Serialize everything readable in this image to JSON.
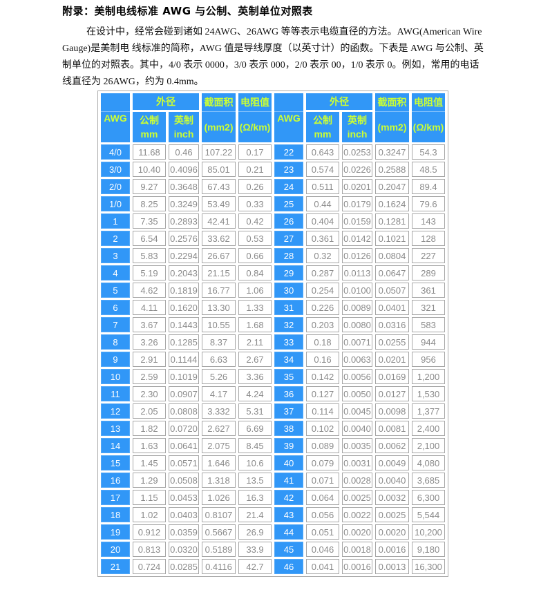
{
  "page": {
    "title": "附录：美制电线标准 AWG 与公制、英制单位对照表",
    "paragraph": "在设计中，经常会碰到诸如 24AWG、26AWG 等等表示电缆直径的方法。AWG(American Wire Gauge)是美制电 线标准的简称，AWG 值是导线厚度（以英寸计）的函数。下表是 AWG 与公制、英制单位的对照表。其中，4/0 表示 0000，3/0 表示 000，2/0 表示 00，1/0 表示 0。例如，常用的电话线直径为 26AWG，约为 0.4mm。"
  },
  "colors": {
    "header_blue": "#3197f7",
    "header_text": "#ccff33",
    "data_text": "#8a8a8a",
    "cell_border": "#a6a6a6"
  },
  "table": {
    "headers": {
      "awg": "AWG",
      "outer_diameter": "外径",
      "metric_label": "公制",
      "metric_unit": "mm",
      "imperial_label": "英制",
      "imperial_unit": "inch",
      "area_label": "截面积",
      "area_unit": "(mm2)",
      "resistance_label": "电阻值",
      "resistance_unit": "(Ω/km)"
    },
    "left_rows": [
      [
        "4/0",
        "11.68",
        "0.46",
        "107.22",
        "0.17"
      ],
      [
        "3/0",
        "10.40",
        "0.4096",
        "85.01",
        "0.21"
      ],
      [
        "2/0",
        "9.27",
        "0.3648",
        "67.43",
        "0.26"
      ],
      [
        "1/0",
        "8.25",
        "0.3249",
        "53.49",
        "0.33"
      ],
      [
        "1",
        "7.35",
        "0.2893",
        "42.41",
        "0.42"
      ],
      [
        "2",
        "6.54",
        "0.2576",
        "33.62",
        "0.53"
      ],
      [
        "3",
        "5.83",
        "0.2294",
        "26.67",
        "0.66"
      ],
      [
        "4",
        "5.19",
        "0.2043",
        "21.15",
        "0.84"
      ],
      [
        "5",
        "4.62",
        "0.1819",
        "16.77",
        "1.06"
      ],
      [
        "6",
        "4.11",
        "0.1620",
        "13.30",
        "1.33"
      ],
      [
        "7",
        "3.67",
        "0.1443",
        "10.55",
        "1.68"
      ],
      [
        "8",
        "3.26",
        "0.1285",
        "8.37",
        "2.11"
      ],
      [
        "9",
        "2.91",
        "0.1144",
        "6.63",
        "2.67"
      ],
      [
        "10",
        "2.59",
        "0.1019",
        "5.26",
        "3.36"
      ],
      [
        "11",
        "2.30",
        "0.0907",
        "4.17",
        "4.24"
      ],
      [
        "12",
        "2.05",
        "0.0808",
        "3.332",
        "5.31"
      ],
      [
        "13",
        "1.82",
        "0.0720",
        "2.627",
        "6.69"
      ],
      [
        "14",
        "1.63",
        "0.0641",
        "2.075",
        "8.45"
      ],
      [
        "15",
        "1.45",
        "0.0571",
        "1.646",
        "10.6"
      ],
      [
        "16",
        "1.29",
        "0.0508",
        "1.318",
        "13.5"
      ],
      [
        "17",
        "1.15",
        "0.0453",
        "1.026",
        "16.3"
      ],
      [
        "18",
        "1.02",
        "0.0403",
        "0.8107",
        "21.4"
      ],
      [
        "19",
        "0.912",
        "0.0359",
        "0.5667",
        "26.9"
      ],
      [
        "20",
        "0.813",
        "0.0320",
        "0.5189",
        "33.9"
      ],
      [
        "21",
        "0.724",
        "0.0285",
        "0.4116",
        "42.7"
      ]
    ],
    "right_rows": [
      [
        "22",
        "0.643",
        "0.0253",
        "0.3247",
        "54.3"
      ],
      [
        "23",
        "0.574",
        "0.0226",
        "0.2588",
        "48.5"
      ],
      [
        "24",
        "0.511",
        "0.0201",
        "0.2047",
        "89.4"
      ],
      [
        "25",
        "0.44",
        "0.0179",
        "0.1624",
        "79.6"
      ],
      [
        "26",
        "0.404",
        "0.0159",
        "0.1281",
        "143"
      ],
      [
        "27",
        "0.361",
        "0.0142",
        "0.1021",
        "128"
      ],
      [
        "28",
        "0.32",
        "0.0126",
        "0.0804",
        "227"
      ],
      [
        "29",
        "0.287",
        "0.0113",
        "0.0647",
        "289"
      ],
      [
        "30",
        "0.254",
        "0.0100",
        "0.0507",
        "361"
      ],
      [
        "31",
        "0.226",
        "0.0089",
        "0.0401",
        "321"
      ],
      [
        "32",
        "0.203",
        "0.0080",
        "0.0316",
        "583"
      ],
      [
        "33",
        "0.18",
        "0.0071",
        "0.0255",
        "944"
      ],
      [
        "34",
        "0.16",
        "0.0063",
        "0.0201",
        "956"
      ],
      [
        "35",
        "0.142",
        "0.0056",
        "0.0169",
        "1,200"
      ],
      [
        "36",
        "0.127",
        "0.0050",
        "0.0127",
        "1,530"
      ],
      [
        "37",
        "0.114",
        "0.0045",
        "0.0098",
        "1,377"
      ],
      [
        "38",
        "0.102",
        "0.0040",
        "0.0081",
        "2,400"
      ],
      [
        "39",
        "0.089",
        "0.0035",
        "0.0062",
        "2,100"
      ],
      [
        "40",
        "0.079",
        "0.0031",
        "0.0049",
        "4,080"
      ],
      [
        "41",
        "0.071",
        "0.0028",
        "0.0040",
        "3,685"
      ],
      [
        "42",
        "0.064",
        "0.0025",
        "0.0032",
        "6,300"
      ],
      [
        "43",
        "0.056",
        "0.0022",
        "0.0025",
        "5,544"
      ],
      [
        "44",
        "0.051",
        "0.0020",
        "0.0020",
        "10,200"
      ],
      [
        "45",
        "0.046",
        "0.0018",
        "0.0016",
        "9,180"
      ],
      [
        "46",
        "0.041",
        "0.0016",
        "0.0013",
        "16,300"
      ]
    ]
  }
}
